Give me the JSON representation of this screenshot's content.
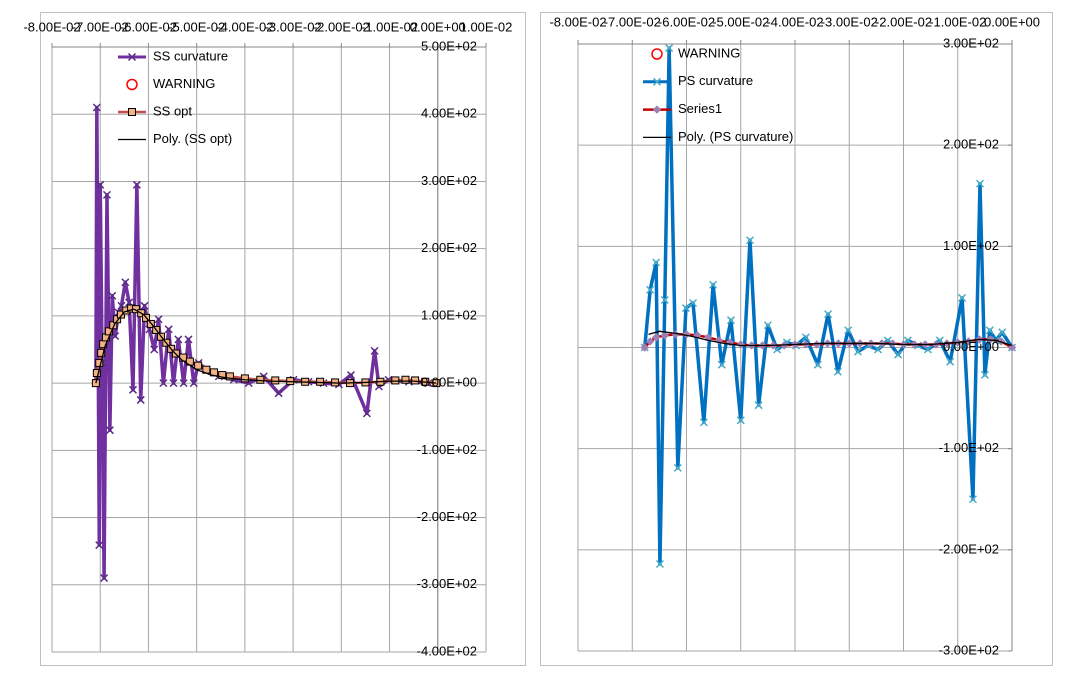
{
  "chart_data": [
    {
      "type": "line",
      "xlim": [
        -0.08,
        0.01
      ],
      "xticks": [
        {
          "value": -0.08,
          "label": "-8.00E-02"
        },
        {
          "value": -0.07,
          "label": "-7.00E-02"
        },
        {
          "value": -0.06,
          "label": "-6.00E-02"
        },
        {
          "value": -0.05,
          "label": "-5.00E-02"
        },
        {
          "value": -0.04,
          "label": "-4.00E-02"
        },
        {
          "value": -0.03,
          "label": "-3.00E-02"
        },
        {
          "value": -0.02,
          "label": "-2.00E-02"
        },
        {
          "value": -0.01,
          "label": "-1.00E-02"
        },
        {
          "value": 0,
          "label": "0.00E+00"
        },
        {
          "value": 0.01,
          "label": "1.00E-02"
        }
      ],
      "ylim": [
        -400,
        500
      ],
      "yticks": [
        {
          "value": 500,
          "label": "5.00E+02"
        },
        {
          "value": 400,
          "label": "4.00E+02"
        },
        {
          "value": 300,
          "label": "3.00E+02"
        },
        {
          "value": 200,
          "label": "2.00E+02"
        },
        {
          "value": 100,
          "label": "1.00E+02"
        },
        {
          "value": 0,
          "label": "0.00E+00"
        },
        {
          "value": -100,
          "label": "-1.00E+02"
        },
        {
          "value": -200,
          "label": "-2.00E+02"
        },
        {
          "value": -300,
          "label": "-3.00E+02"
        },
        {
          "value": -400,
          "label": "-4.00E+02"
        }
      ],
      "grid": true,
      "series": [
        {
          "name": "SS curvature",
          "color": "#7030a0",
          "line_width": 3.5,
          "marker": "x",
          "marker_color": "#5b2d86",
          "x": [
            -0.0709,
            -0.0707,
            -0.0702,
            -0.07,
            -0.0696,
            -0.0692,
            -0.0686,
            -0.068,
            -0.0675,
            -0.0669,
            -0.0662,
            -0.0656,
            -0.0648,
            -0.064,
            -0.0632,
            -0.0624,
            -0.0616,
            -0.0608,
            -0.0598,
            -0.0588,
            -0.0579,
            -0.0569,
            -0.0558,
            -0.0548,
            -0.0538,
            -0.0527,
            -0.0517,
            -0.0506,
            -0.0496,
            -0.0479,
            -0.0454,
            -0.0423,
            -0.0392,
            -0.0361,
            -0.033,
            -0.0299,
            -0.0268,
            -0.0237,
            -0.0205,
            -0.018,
            -0.0147,
            -0.0131,
            -0.0122,
            -0.0102,
            -0.006,
            -0.0019
          ],
          "values": [
            0,
            410,
            -241,
            295,
            30,
            -290,
            280,
            -70,
            130,
            70,
            105,
            115,
            150,
            120,
            -10,
            295,
            -25,
            115,
            80,
            50,
            95,
            0,
            80,
            0,
            65,
            0,
            65,
            0,
            30,
            20,
            10,
            5,
            0,
            10,
            -15,
            5,
            2,
            0,
            -2,
            12,
            -45,
            48,
            -5,
            5,
            2,
            0
          ]
        },
        {
          "name": "WARNING",
          "color": "#ff0000",
          "line_width": 0,
          "marker": "circle",
          "marker_color": "#ff0000",
          "x": [],
          "values": []
        },
        {
          "name": "SS opt",
          "color": "#c0504d",
          "line_width": 2.5,
          "marker": "square",
          "marker_color": "#f4b183",
          "x": [
            -0.0709,
            -0.0707,
            -0.0702,
            -0.0698,
            -0.0694,
            -0.0688,
            -0.0682,
            -0.0673,
            -0.0665,
            -0.0657,
            -0.0646,
            -0.0636,
            -0.0626,
            -0.0615,
            -0.0605,
            -0.0595,
            -0.0584,
            -0.0574,
            -0.0563,
            -0.0553,
            -0.0543,
            -0.0528,
            -0.0514,
            -0.0497,
            -0.048,
            -0.0464,
            -0.0447,
            -0.0431,
            -0.04,
            -0.0368,
            -0.0337,
            -0.0306,
            -0.0275,
            -0.0244,
            -0.0213,
            -0.0182,
            -0.015,
            -0.0119,
            -0.0088,
            -0.0067,
            -0.0047,
            -0.0026,
            -0.0003
          ],
          "values": [
            0,
            15,
            30,
            45,
            58,
            68,
            77,
            86,
            95,
            102,
            108,
            111,
            110,
            104,
            97,
            88,
            79,
            69,
            60,
            51,
            44,
            38,
            32,
            26,
            20,
            16,
            12,
            10,
            7,
            5,
            4,
            3,
            2,
            2,
            1,
            0,
            1,
            2,
            4,
            5,
            4,
            2,
            0
          ]
        },
        {
          "name": "Poly. (SS opt)",
          "color": "#000000",
          "line_width": 1.3,
          "marker": null,
          "marker_color": null,
          "x": [
            -0.0709,
            -0.069,
            -0.067,
            -0.065,
            -0.063,
            -0.061,
            -0.059,
            -0.057,
            -0.055,
            -0.053,
            -0.05,
            -0.047,
            -0.044,
            -0.04,
            -0.035,
            -0.03,
            -0.025,
            -0.02,
            -0.015,
            -0.01,
            -0.005,
            -0.0003
          ],
          "values": [
            0,
            55,
            88,
            106,
            110,
            102,
            85,
            66,
            48,
            34,
            20,
            12,
            8,
            5,
            3,
            2,
            1,
            0,
            1,
            3,
            3,
            0
          ]
        }
      ]
    },
    {
      "type": "line",
      "xlim": [
        -0.08,
        0
      ],
      "xticks": [
        {
          "value": -0.08,
          "label": "-8.00E-02"
        },
        {
          "value": -0.07,
          "label": "-7.00E-02"
        },
        {
          "value": -0.06,
          "label": "-6.00E-02"
        },
        {
          "value": -0.05,
          "label": "-5.00E-02"
        },
        {
          "value": -0.04,
          "label": "-4.00E-02"
        },
        {
          "value": -0.03,
          "label": "-3.00E-02"
        },
        {
          "value": -0.02,
          "label": "-2.00E-02"
        },
        {
          "value": -0.01,
          "label": "-1.00E-02"
        },
        {
          "value": 0,
          "label": "0.00E+00"
        }
      ],
      "ylim": [
        -300,
        300
      ],
      "yticks": [
        {
          "value": 300,
          "label": "3.00E+02"
        },
        {
          "value": 200,
          "label": "2.00E+02"
        },
        {
          "value": 100,
          "label": "1.00E+02"
        },
        {
          "value": 0,
          "label": "0.00E+00"
        },
        {
          "value": -100,
          "label": "-1.00E+02"
        },
        {
          "value": -200,
          "label": "-2.00E+02"
        },
        {
          "value": -300,
          "label": "-3.00E+02"
        }
      ],
      "grid": true,
      "series": [
        {
          "name": "WARNING",
          "color": "#ff0000",
          "line_width": 0,
          "marker": "circle",
          "marker_color": "#ff0000",
          "x": [],
          "values": []
        },
        {
          "name": "PS curvature",
          "color": "#0070c0",
          "line_width": 3.5,
          "marker": "x",
          "marker_color": "#4bacc6",
          "x": [
            -0.0677,
            -0.0667,
            -0.0656,
            -0.0649,
            -0.064,
            -0.0632,
            -0.0616,
            -0.0601,
            -0.0588,
            -0.0568,
            -0.0551,
            -0.0535,
            -0.0518,
            -0.05,
            -0.0483,
            -0.0467,
            -0.045,
            -0.0433,
            -0.0415,
            -0.0398,
            -0.038,
            -0.0358,
            -0.0339,
            -0.0321,
            -0.0302,
            -0.0284,
            -0.0265,
            -0.0247,
            -0.0229,
            -0.021,
            -0.0192,
            -0.0173,
            -0.0155,
            -0.0133,
            -0.0114,
            -0.0092,
            -0.0072,
            -0.0059,
            -0.005,
            -0.0041,
            -0.003,
            -0.0018,
            0
          ],
          "values": [
            0,
            57,
            84,
            -214,
            47,
            296,
            -119,
            39,
            44,
            -74,
            62,
            -17,
            27,
            -72,
            106,
            -57,
            22,
            -2,
            5,
            2,
            10,
            -17,
            33,
            -24,
            17,
            -4,
            2,
            -2,
            7,
            -7,
            7,
            2,
            -2,
            7,
            -14,
            49,
            -150,
            162,
            -27,
            17,
            7,
            15,
            0
          ]
        },
        {
          "name": "Series1",
          "color": "#c00000",
          "line_width": 2.5,
          "marker": "diamond",
          "marker_color": "#9f7fb3",
          "x": [
            -0.0677,
            -0.0667,
            -0.0656,
            -0.064,
            -0.062,
            -0.06,
            -0.058,
            -0.056,
            -0.054,
            -0.052,
            -0.05,
            -0.048,
            -0.046,
            -0.044,
            -0.042,
            -0.04,
            -0.038,
            -0.036,
            -0.034,
            -0.032,
            -0.03,
            -0.028,
            -0.026,
            -0.024,
            -0.022,
            -0.02,
            -0.018,
            -0.016,
            -0.014,
            -0.012,
            -0.01,
            -0.008,
            -0.006,
            -0.004,
            -0.002,
            0
          ],
          "values": [
            0,
            6,
            10,
            12,
            13,
            13,
            12,
            10,
            7,
            5,
            3,
            2,
            2,
            2,
            2,
            3,
            3,
            3,
            4,
            4,
            4,
            4,
            4,
            4,
            4,
            3,
            3,
            3,
            3,
            4,
            5,
            6,
            8,
            8,
            6,
            0
          ]
        },
        {
          "name": "Poly. (PS curvature)",
          "color": "#000000",
          "line_width": 1.3,
          "marker": null,
          "marker_color": null,
          "x": [
            -0.067,
            -0.065,
            -0.062,
            -0.059,
            -0.056,
            -0.053,
            -0.05,
            -0.045,
            -0.04,
            -0.035,
            -0.03,
            -0.025,
            -0.02,
            -0.015,
            -0.01,
            -0.006,
            -0.003,
            0
          ],
          "values": [
            13,
            16,
            14,
            11,
            7,
            4,
            2,
            2,
            3,
            4,
            4,
            4,
            3,
            3,
            5,
            8,
            7,
            2
          ]
        }
      ]
    }
  ]
}
